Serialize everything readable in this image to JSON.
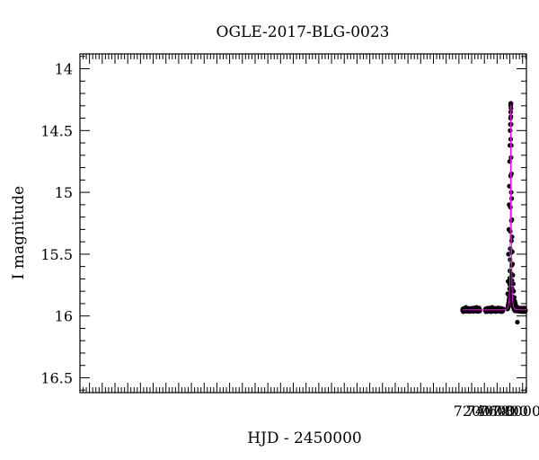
{
  "chart_data": {
    "type": "scatter",
    "title": "OGLE-2017-BLG-0023",
    "xlabel": "HJD - 2450000",
    "ylabel": "I magnitude",
    "xlim": [
      1050,
      8060
    ],
    "ylim": [
      16.62,
      13.88
    ],
    "y_inverted": true,
    "grid": false,
    "legend": "none",
    "x_ticks": [
      7200,
      7400,
      7600,
      7800,
      8000
    ],
    "y_ticks": [
      14,
      14.5,
      15,
      15.5,
      16,
      16.5
    ],
    "x_tick_labels": [
      "7200",
      "7400",
      "7600",
      "7800",
      "8000"
    ],
    "y_tick_labels": [
      "14",
      "14.5",
      "15",
      "15.5",
      "16",
      "16.5"
    ],
    "colors": {
      "points": "#000000",
      "model": "#ff00ff",
      "errorbar": "#444444"
    },
    "model": {
      "baseline": 15.95,
      "peak_time": 7815.5,
      "peak_mag": 14.28,
      "tE": 16,
      "u0": 0.17
    },
    "observation_seasons": [
      [
        7058,
        7330
      ],
      [
        7415,
        7695
      ],
      [
        7763,
        8045
      ]
    ],
    "series": [
      {
        "style": "points",
        "x": [
          7060,
          7072,
          7085,
          7098,
          7110,
          7125,
          7140,
          7155,
          7170,
          7185,
          7200,
          7215,
          7230,
          7245,
          7260,
          7275,
          7290,
          7305,
          7320,
          7420,
          7435,
          7450,
          7465,
          7480,
          7495,
          7510,
          7525,
          7540,
          7555,
          7570,
          7585,
          7600,
          7615,
          7630,
          7645,
          7660,
          7675,
          7690,
          7766,
          7772,
          7778,
          7784,
          7788,
          7792,
          7796,
          7800,
          7804,
          7807,
          7810,
          7812,
          7814,
          7815,
          7816,
          7818,
          7820,
          7822,
          7825,
          7828,
          7831,
          7834,
          7838,
          7842,
          7847,
          7853,
          7860,
          7868,
          7877,
          7887,
          7900,
          7915,
          7918,
          7935,
          7960,
          7990,
          8020,
          8040
        ],
        "y": [
          15.95,
          15.94,
          15.96,
          15.95,
          15.93,
          15.96,
          15.95,
          15.94,
          15.96,
          15.95,
          15.94,
          15.95,
          15.96,
          15.94,
          15.95,
          15.93,
          15.96,
          15.95,
          15.96,
          15.95,
          15.94,
          15.96,
          15.95,
          15.94,
          15.95,
          15.96,
          15.93,
          15.95,
          15.94,
          15.96,
          15.95,
          15.94,
          15.95,
          15.96,
          15.94,
          15.95,
          15.96,
          15.95,
          15.82,
          15.72,
          15.5,
          15.3,
          15.1,
          14.95,
          14.75,
          14.62,
          14.5,
          14.45,
          14.4,
          14.35,
          14.3,
          14.28,
          14.28,
          14.32,
          14.45,
          14.62,
          14.85,
          15.05,
          15.22,
          15.36,
          15.48,
          15.58,
          15.67,
          15.74,
          15.8,
          15.85,
          15.88,
          15.9,
          15.92,
          15.93,
          16.05,
          15.94,
          15.95,
          15.94,
          15.95,
          15.95
        ]
      },
      {
        "style": "line",
        "x": [],
        "y": []
      }
    ]
  }
}
